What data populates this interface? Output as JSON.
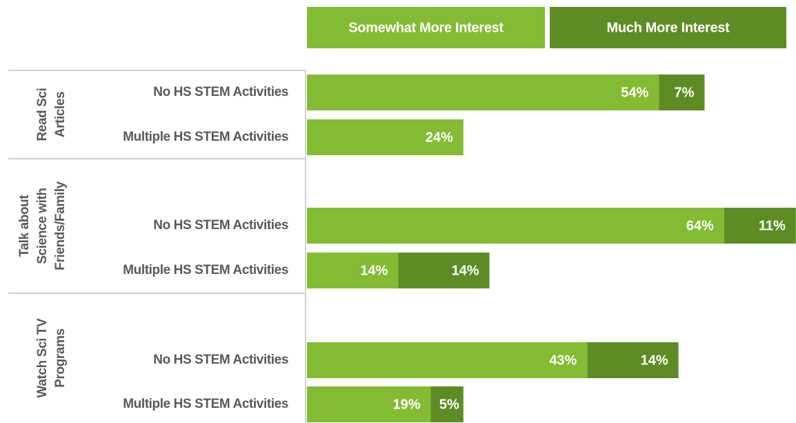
{
  "chart_data": {
    "type": "stacked-bar-horizontal",
    "groups": [
      {
        "name": [
          "Read Sci",
          "Articles"
        ],
        "categories": [
          "No HS STEM Activities",
          "Multiple HS STEM Activities"
        ]
      },
      {
        "name": [
          "Talk about",
          "Science with",
          "Friends/Family"
        ],
        "categories": [
          "No HS STEM Activities",
          "Multiple HS STEM Activities"
        ]
      },
      {
        "name": [
          "Watch Sci TV",
          "Programs"
        ],
        "categories": [
          "No HS STEM Activities",
          "Multiple HS STEM Activities"
        ]
      }
    ],
    "series": [
      {
        "name": "Somewhat More Interest",
        "color": "#83bb33",
        "values": [
          54,
          24,
          64,
          14,
          43,
          19
        ],
        "value_labels": [
          "54%",
          "24%",
          "64%",
          "14%",
          "43%",
          "19%"
        ]
      },
      {
        "name": "Much More Interest",
        "color": "#5e8c24",
        "values": [
          7,
          null,
          11,
          14,
          14,
          5
        ],
        "value_labels": [
          "7%",
          null,
          "11%",
          "14%",
          "14%",
          "5%"
        ]
      }
    ],
    "legend": "top"
  }
}
